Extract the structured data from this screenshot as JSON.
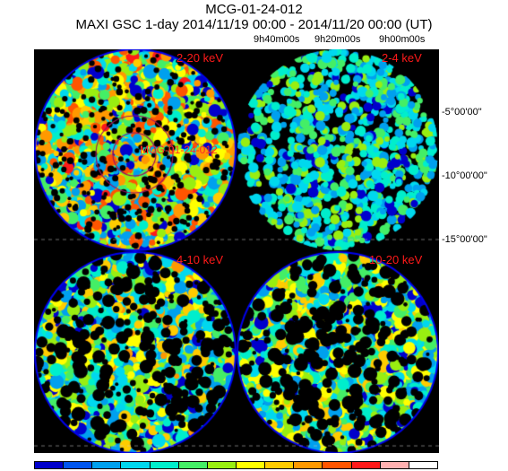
{
  "header": {
    "source_name": "MCG-01-24-012",
    "subtitle": "MAXI GSC 1-day 2014/11/19 00:00 - 2014/11/20 00:00 (UT)"
  },
  "axes": {
    "ra_labels": [
      "9h40m00s",
      "9h20m00s",
      "9h00m00s"
    ],
    "dec_labels": [
      "-5°00'00\"",
      "-10°00'00\"",
      "-15°00'00\""
    ]
  },
  "panels": [
    {
      "band": "2-20 keV",
      "level": 0.62
    },
    {
      "band": "2-4 keV",
      "level": 0.18
    },
    {
      "band": "4-10 keV",
      "level": 0.42
    },
    {
      "band": "10-20 keV",
      "level": 0.4
    }
  ],
  "source_marker": {
    "label": "MCG-01-24-012"
  },
  "colorbar": [
    "#0000cc",
    "#0055ee",
    "#00a0ee",
    "#00d8ee",
    "#00eecc",
    "#44ee66",
    "#99ee11",
    "#ffff00",
    "#ffcc00",
    "#ff9900",
    "#ff5500",
    "#ff1a1a",
    "#ffb0b0",
    "#ffffff"
  ],
  "colors": {
    "background": "#000000",
    "disk_edge": "#0000ee",
    "label": "#ff1a1a"
  }
}
